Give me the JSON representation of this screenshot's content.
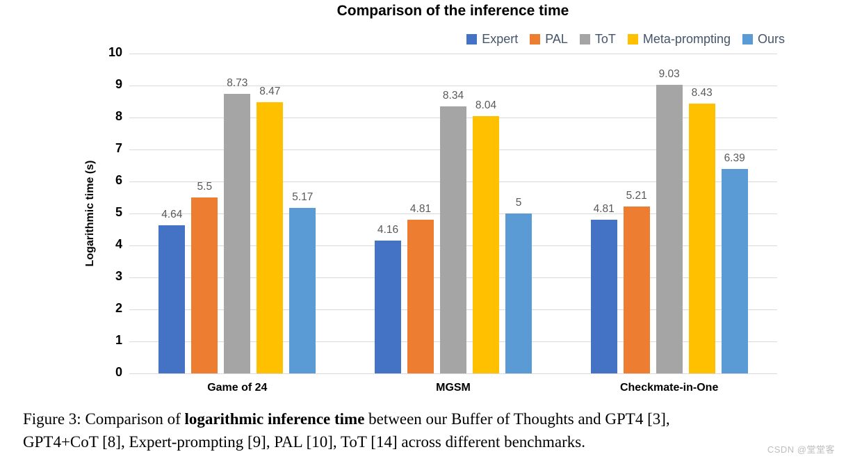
{
  "chart_data": {
    "type": "bar",
    "title": "Comparison of the inference time",
    "categories": [
      "Game of 24",
      "MGSM",
      "Checkmate-in-One"
    ],
    "series": [
      {
        "name": "Expert",
        "color": "#4472C4",
        "values": [
          4.64,
          4.16,
          4.81
        ]
      },
      {
        "name": "PAL",
        "color": "#ED7D31",
        "values": [
          5.5,
          4.81,
          5.21
        ]
      },
      {
        "name": "ToT",
        "color": "#A5A5A5",
        "values": [
          8.73,
          8.34,
          9.03
        ]
      },
      {
        "name": "Meta-prompting",
        "color": "#FFC000",
        "values": [
          8.47,
          8.04,
          8.43
        ]
      },
      {
        "name": "Ours",
        "color": "#5B9BD5",
        "values": [
          5.17,
          5,
          6.39
        ]
      }
    ],
    "labels": [
      [
        "4.64",
        "5.5",
        "8.73",
        "8.47",
        "5.17"
      ],
      [
        "4.16",
        "4.81",
        "8.34",
        "8.04",
        "5"
      ],
      [
        "4.81",
        "5.21",
        "9.03",
        "8.43",
        "6.39"
      ]
    ],
    "xlabel": "",
    "ylabel": "Logarithmic time (s)",
    "ylim": [
      0,
      10
    ],
    "yticks": [
      0,
      1,
      2,
      3,
      4,
      5,
      6,
      7,
      8,
      9,
      10
    ],
    "grid": true,
    "legend_position": "top-right"
  },
  "caption": {
    "line1_prefix": "Figure 3: Comparison of ",
    "line1_bold": "logarithmic inference time",
    "line1_suffix": " between our Buffer of Thoughts and GPT4 [3],",
    "line2": "GPT4+CoT [8], Expert-prompting [9], PAL [10], ToT [14] across different benchmarks."
  },
  "watermark": "CSDN @堂堂客"
}
